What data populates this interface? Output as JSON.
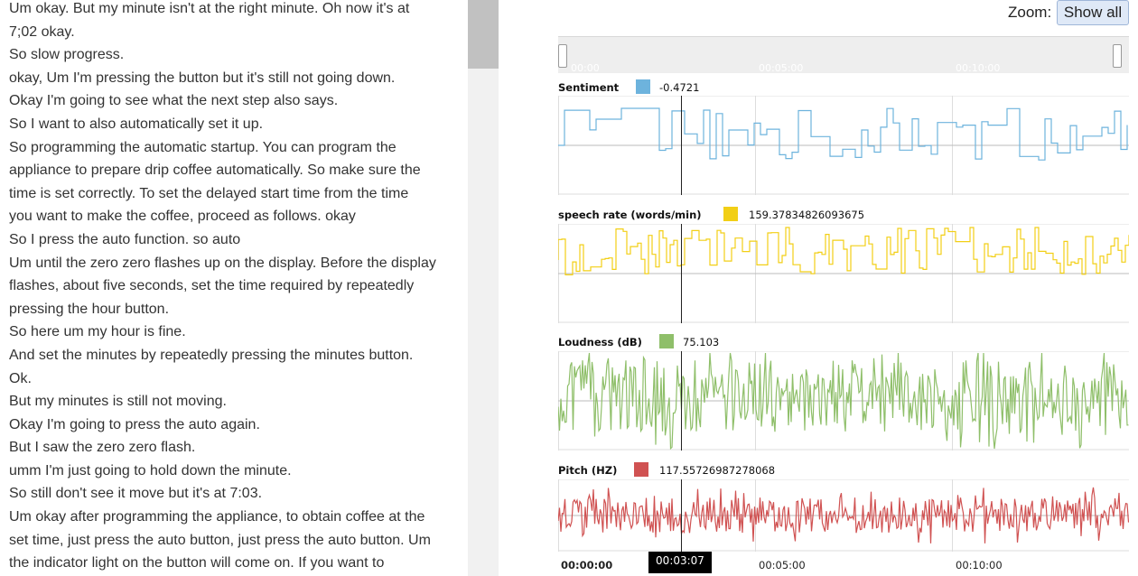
{
  "transcript": [
    "Um okay. But my minute isn't at the right minute. Oh now it's at",
    "7;02 okay.",
    "So slow progress.",
    "okay, Um I'm pressing the button but it's still not going down.",
    "Okay I'm going to see what the next step also says.",
    "So I want to also automatically set it up.",
    "So programming the automatic startup. You can program the",
    "appliance to prepare drip coffee automatically. So make sure the",
    "time is set correctly. To set the delayed start time from the time",
    "you want to make the coffee, proceed as follows. okay",
    "So I press the auto function. so auto",
    "Um until the zero zero flashes up on the display. Before the display",
    "flashes, about five seconds, set the time required by repeatedly",
    "pressing the hour button.",
    "So here um my hour is fine.",
    "And set the minutes by repeatedly pressing the minutes button.",
    "Ok.",
    "But my minutes is still not moving.",
    "Okay I'm going to press the auto again.",
    "But I saw the zero zero flash.",
    "umm I'm just going to hold down the minute.",
    "So still don't see it move but it's at 7:03.",
    "Um okay after programming the appliance, to obtain coffee at the",
    "set time, just press the auto button, just press the auto button. Um",
    "the indicator light on the button will come on. If you want to"
  ],
  "zoom": {
    "label": "Zoom:",
    "button": "Show all"
  },
  "navigator": {
    "ticks": [
      "00:00",
      "00:05:00",
      "00:10:00"
    ]
  },
  "charts": [
    {
      "title": "Sentiment",
      "value": "-0.4721",
      "color": "#6db3dd"
    },
    {
      "title": "speech rate (words/min)",
      "value": "159.37834826093675",
      "color": "#f2cf16"
    },
    {
      "title": "Loudness (dB)",
      "value": "75.103",
      "color": "#8fbf6a"
    },
    {
      "title": "Pitch (HZ)",
      "value": "117.55726987278068",
      "color": "#d05252"
    }
  ],
  "time_axis": {
    "ticks": [
      "00:00:00",
      "00:05:00",
      "00:10:00"
    ],
    "cursor": "00:03:07"
  }
}
